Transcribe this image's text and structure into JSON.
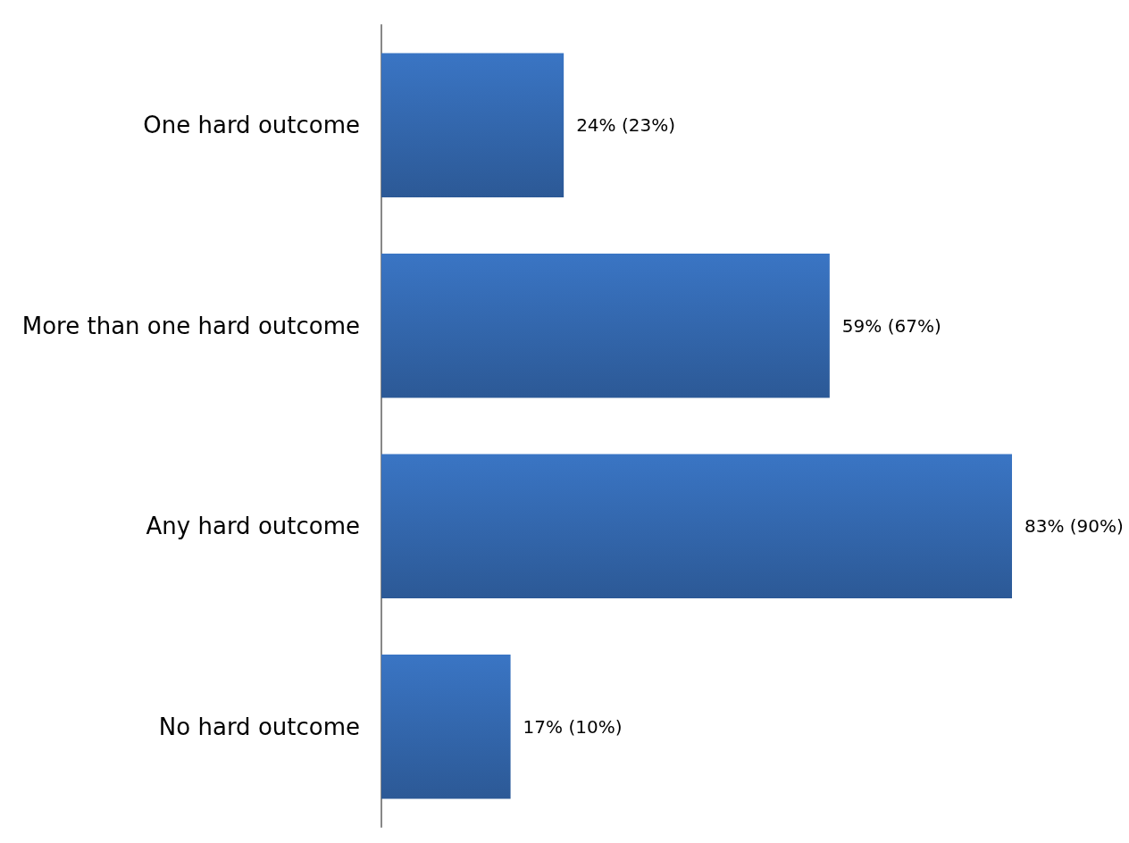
{
  "chart_data": {
    "type": "bar",
    "orientation": "horizontal",
    "categories": [
      "One hard outcome",
      "More than one hard outcome",
      "Any hard outcome",
      "No hard outcome"
    ],
    "values": [
      24,
      59,
      83,
      17
    ],
    "value_labels": [
      "24% (23%)",
      "59% (67%)",
      "83% (90%)",
      "17% (10%)"
    ],
    "color": "#3a75c4",
    "tick_labels": "y"
  }
}
